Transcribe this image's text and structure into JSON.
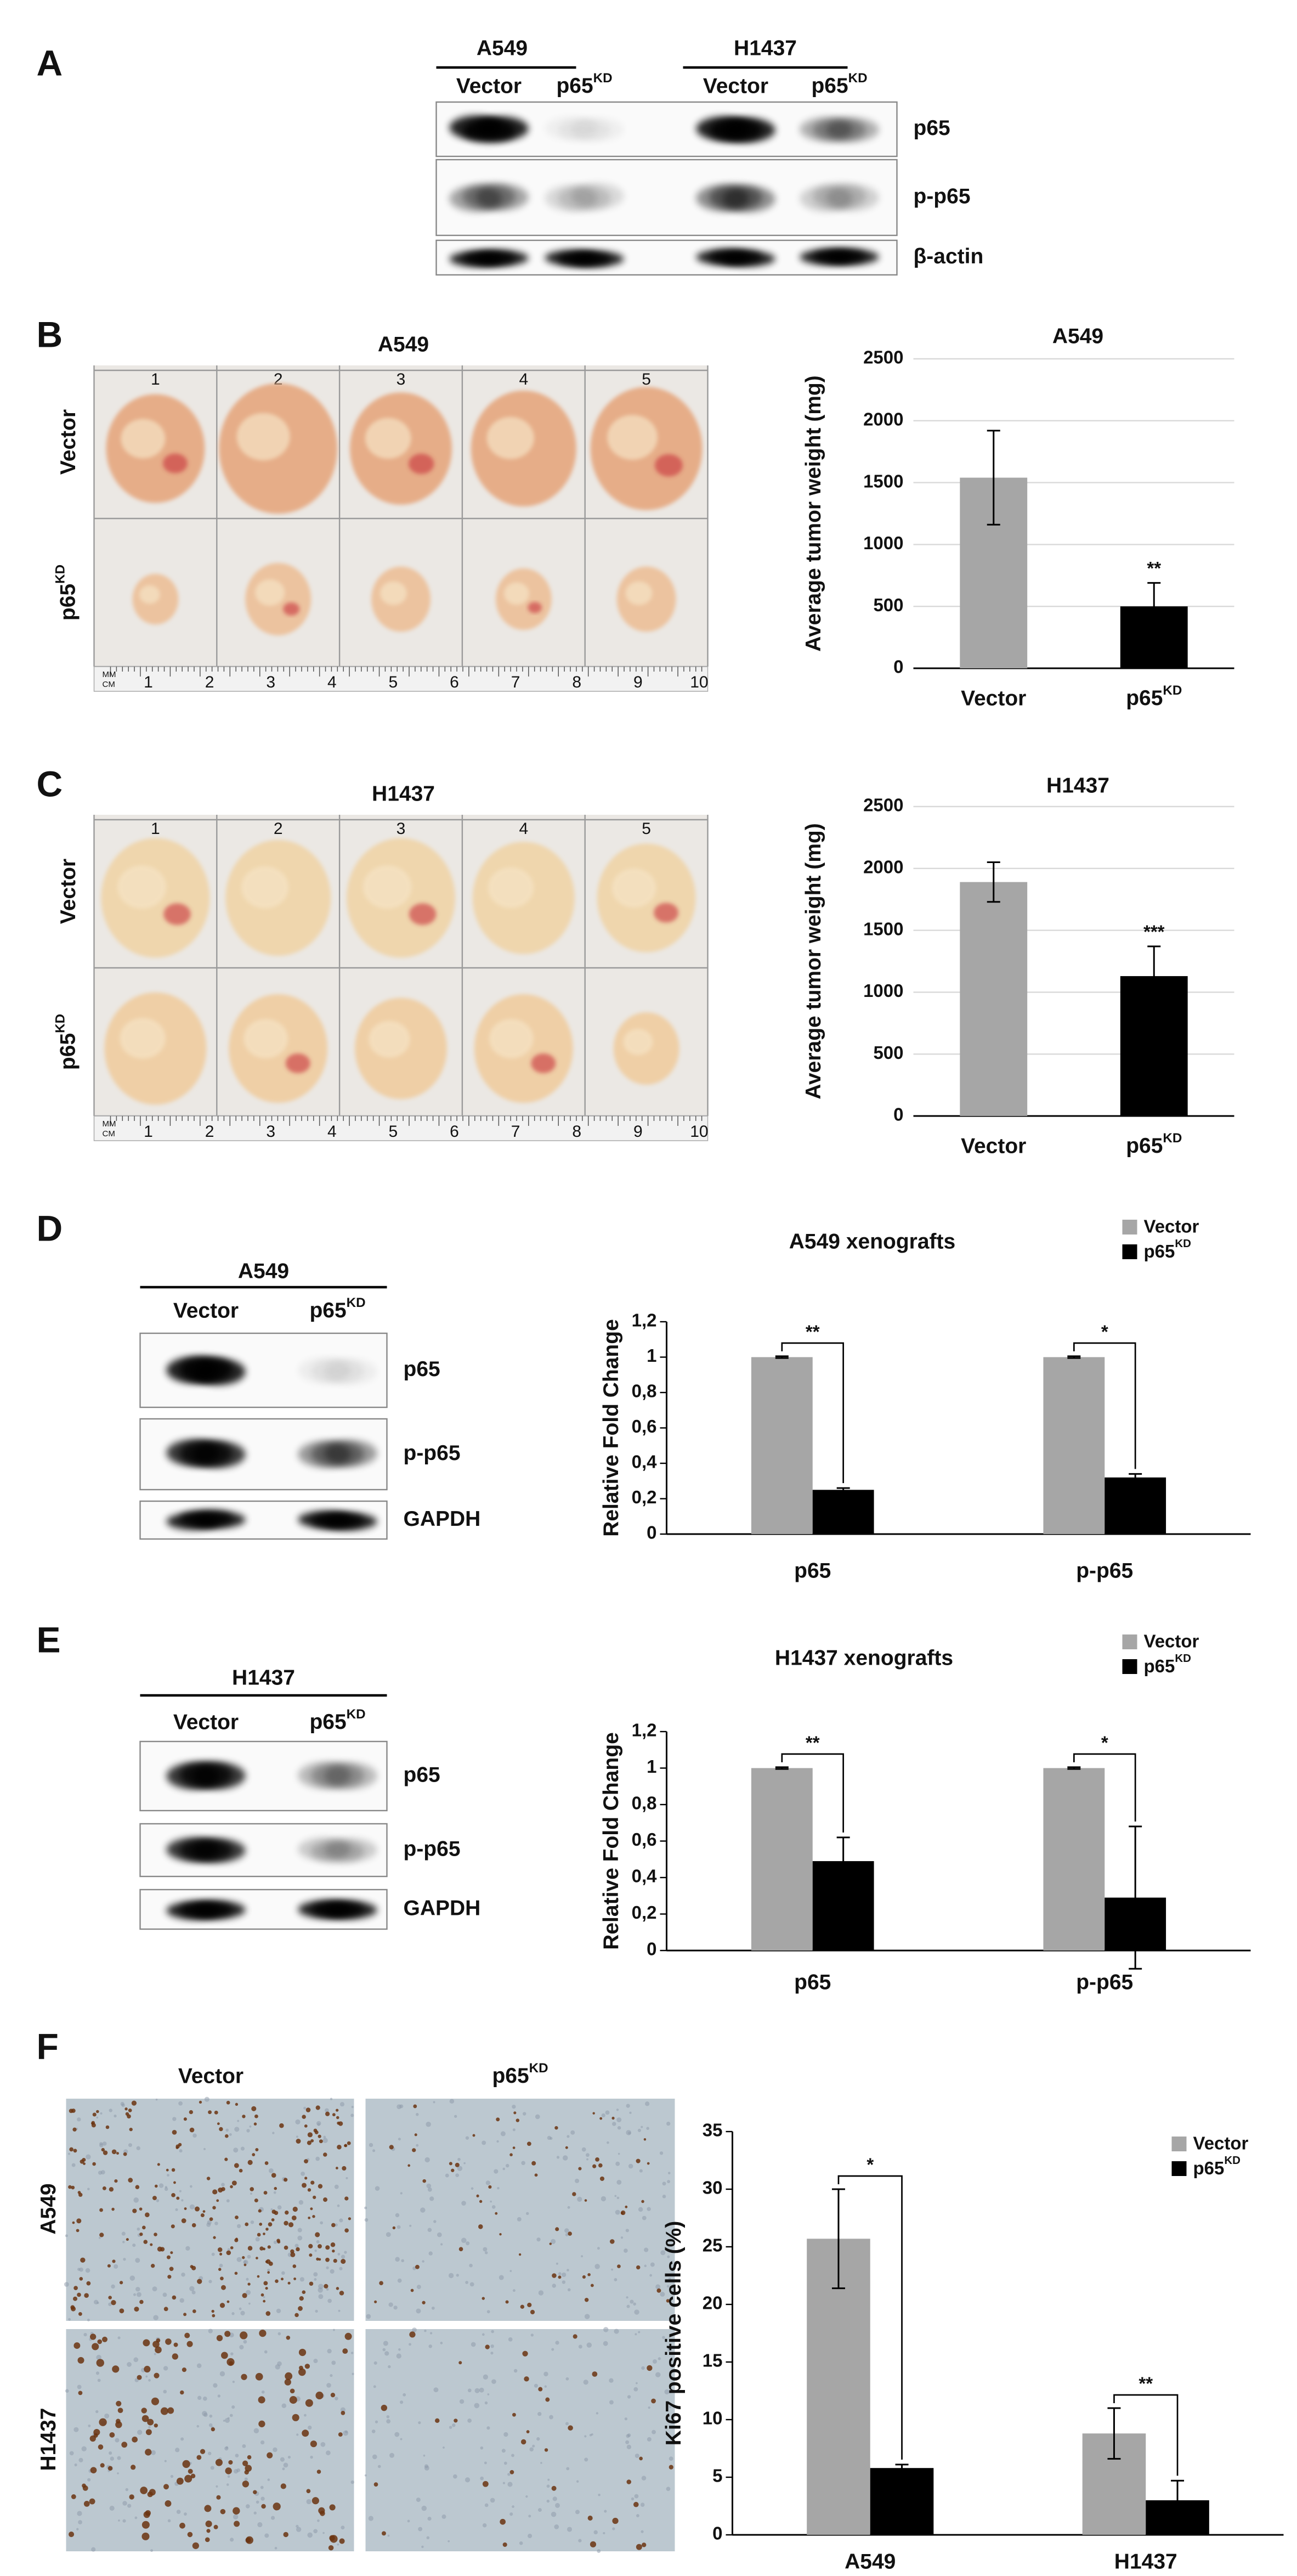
{
  "panels": {
    "A": {
      "letter": "A",
      "groups": [
        "A549",
        "H1437"
      ],
      "lanes": [
        "Vector",
        {
          "text": "p65",
          "sup": "KD"
        },
        "Vector",
        {
          "text": "p65",
          "sup": "KD"
        }
      ],
      "rows": [
        "p65",
        "p-p65",
        "β-actin"
      ]
    },
    "B": {
      "letter": "B",
      "title": "A549",
      "rows": [
        "Vector",
        {
          "text": "p65",
          "sup": "KD"
        }
      ],
      "columns": [
        "1",
        "2",
        "3",
        "4",
        "5"
      ],
      "ruler_units": [
        "MM",
        "CM"
      ],
      "ruler": [
        "1",
        "2",
        "3",
        "4",
        "5",
        "6",
        "7",
        "8",
        "9",
        "10"
      ]
    },
    "C": {
      "letter": "C",
      "title": "H1437",
      "rows": [
        "Vector",
        {
          "text": "p65",
          "sup": "KD"
        }
      ],
      "columns": [
        "1",
        "2",
        "3",
        "4",
        "5"
      ],
      "ruler_units": [
        "MM",
        "CM"
      ],
      "ruler": [
        "1",
        "2",
        "3",
        "4",
        "5",
        "6",
        "7",
        "8",
        "9",
        "10"
      ]
    },
    "D": {
      "letter": "D",
      "title": "A549",
      "lanes": [
        "Vector",
        {
          "text": "p65",
          "sup": "KD"
        }
      ],
      "rows": [
        "p65",
        "p-p65",
        "GAPDH"
      ]
    },
    "E": {
      "letter": "E",
      "title": "H1437",
      "lanes": [
        "Vector",
        {
          "text": "p65",
          "sup": "KD"
        }
      ],
      "rows": [
        "p65",
        "p-p65",
        "GAPDH"
      ]
    },
    "F": {
      "letter": "F",
      "columns": [
        "Vector",
        {
          "text": "p65",
          "sup": "KD"
        }
      ],
      "rows": [
        "A549",
        "H1437"
      ]
    }
  },
  "chart_data": [
    {
      "type": "bar",
      "title": "A549",
      "y_label": "Average tumor weight (mg)",
      "categories": [
        "Vector",
        {
          "text": "p65",
          "sup": "KD"
        }
      ],
      "values": [
        1540,
        500
      ],
      "errors": [
        380,
        190
      ],
      "colors": [
        "#a6a6a6",
        "#000000"
      ],
      "value_annotations": [
        null,
        "**"
      ],
      "ylim": [
        0,
        2500
      ],
      "yticks": [
        0,
        500,
        1000,
        1500,
        2000,
        2500
      ],
      "grid": true
    },
    {
      "type": "bar",
      "title": "H1437",
      "y_label": "Average tumor weight (mg)",
      "categories": [
        "Vector",
        {
          "text": "p65",
          "sup": "KD"
        }
      ],
      "values": [
        1890,
        1130
      ],
      "errors": [
        160,
        240
      ],
      "colors": [
        "#a6a6a6",
        "#000000"
      ],
      "value_annotations": [
        null,
        "***"
      ],
      "ylim": [
        0,
        2500
      ],
      "yticks": [
        0,
        500,
        1000,
        1500,
        2000,
        2500
      ],
      "grid": true
    },
    {
      "type": "grouped_bar",
      "title": "A549 xenografts",
      "y_label": "Relative Fold Change",
      "categories": [
        "p65",
        "p-p65"
      ],
      "series": [
        {
          "name": "Vector",
          "color": "#a6a6a6",
          "values": [
            1,
            1
          ],
          "errors": [
            0.005,
            0.005
          ]
        },
        {
          "name": {
            "text": "p65",
            "sup": "KD"
          },
          "color": "#000000",
          "values": [
            0.25,
            0.32
          ],
          "errors": [
            0.01,
            0.02
          ]
        }
      ],
      "significance": [
        "**",
        "*"
      ],
      "ylim": [
        0,
        1.2
      ],
      "yticks": [
        0,
        {
          "value": 0.2,
          "label": "0,2"
        },
        {
          "value": 0.4,
          "label": "0,4"
        },
        {
          "value": 0.6,
          "label": "0,6"
        },
        {
          "value": 0.8,
          "label": "0,8"
        },
        1,
        {
          "value": 1.2,
          "label": "1,2"
        }
      ],
      "grid": false,
      "legend": "top-right"
    },
    {
      "type": "grouped_bar",
      "title": "H1437 xenografts",
      "y_label": "Relative Fold Change",
      "categories": [
        "p65",
        "p-p65"
      ],
      "series": [
        {
          "name": "Vector",
          "color": "#a6a6a6",
          "values": [
            1,
            1
          ],
          "errors": [
            0.005,
            0.005
          ]
        },
        {
          "name": {
            "text": "p65",
            "sup": "KD"
          },
          "color": "#000000",
          "values": [
            0.49,
            0.29
          ],
          "errors": [
            0.13,
            0.39
          ]
        }
      ],
      "significance": [
        "**",
        "*"
      ],
      "ylim": [
        0,
        1.2
      ],
      "yticks": [
        0,
        {
          "value": 0.2,
          "label": "0,2"
        },
        {
          "value": 0.4,
          "label": "0,4"
        },
        {
          "value": 0.6,
          "label": "0,6"
        },
        {
          "value": 0.8,
          "label": "0,8"
        },
        1,
        {
          "value": 1.2,
          "label": "1,2"
        }
      ],
      "grid": false,
      "legend": "top-right"
    },
    {
      "type": "grouped_bar",
      "y_label": "Ki67 positive cells (%)",
      "categories": [
        "A549",
        "H1437"
      ],
      "series": [
        {
          "name": "Vector",
          "color": "#a6a6a6",
          "values": [
            25.7,
            8.8
          ],
          "errors": [
            4.3,
            2.2
          ]
        },
        {
          "name": {
            "text": "p65",
            "sup": "KD"
          },
          "color": "#000000",
          "values": [
            5.8,
            3.0
          ],
          "errors": [
            0.3,
            1.7
          ]
        }
      ],
      "significance": [
        "*",
        "**"
      ],
      "ylim": [
        0,
        35
      ],
      "yticks": [
        0,
        5,
        10,
        15,
        20,
        25,
        30,
        35
      ],
      "grid": false,
      "legend": "top-right"
    }
  ]
}
